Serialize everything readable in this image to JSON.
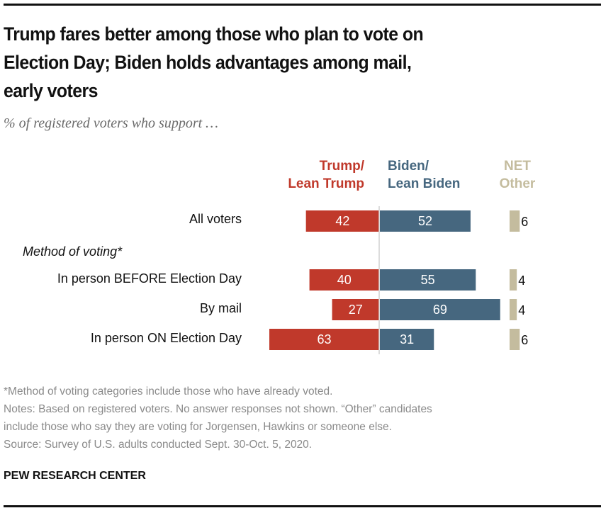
{
  "title": "Trump fares better among those who plan to vote on Election Day; Biden holds advantages among mail, early voters",
  "title_lines": [
    "Trump fares better among those who plan to vote on",
    "Election Day; Biden holds advantages among mail,",
    "early voters"
  ],
  "subtitle": "% of registered voters who support …",
  "legend": {
    "trump_line1": "Trump/",
    "trump_line2": "Lean Trump",
    "biden_line1": "Biden/",
    "biden_line2": "Lean Biden",
    "other_line1": "NET",
    "other_line2": "Other"
  },
  "group_label": "Method of voting*",
  "colors": {
    "trump": "#c0392b",
    "biden": "#46677f",
    "other": "#c4bc9e",
    "axis": "#d0d0d0"
  },
  "chart_data": {
    "type": "bar",
    "orientation": "horizontal-diverging",
    "title": "Trump fares better among those who plan to vote on Election Day; Biden holds advantages among mail, early voters",
    "subtitle": "% of registered voters who support …",
    "categories": [
      "All voters",
      "In person BEFORE Election Day",
      "By mail",
      "In person ON Election Day"
    ],
    "groups": [
      {
        "label": null,
        "categories": [
          "All voters"
        ]
      },
      {
        "label": "Method of voting*",
        "categories": [
          "In person BEFORE Election Day",
          "By mail",
          "In person ON Election Day"
        ]
      }
    ],
    "series": [
      {
        "name": "Trump/Lean Trump",
        "color": "#c0392b",
        "values": [
          42,
          40,
          27,
          63
        ]
      },
      {
        "name": "Biden/Lean Biden",
        "color": "#46677f",
        "values": [
          52,
          55,
          69,
          31
        ]
      },
      {
        "name": "NET Other",
        "color": "#c4bc9e",
        "values": [
          6,
          4,
          4,
          6
        ]
      }
    ],
    "xlabel": "",
    "ylabel": "",
    "xlim": [
      0,
      100
    ],
    "grid": false,
    "legend": "top (column headers)"
  },
  "notes": [
    "*Method of voting categories include those who have already voted.",
    "Notes: Based on registered voters. No answer responses not shown. “Other” candidates",
    "include those who say they are voting for Jorgensen, Hawkins or someone else.",
    "Source: Survey of U.S. adults conducted Sept. 30-Oct. 5, 2020."
  ],
  "brand": "PEW RESEARCH CENTER"
}
